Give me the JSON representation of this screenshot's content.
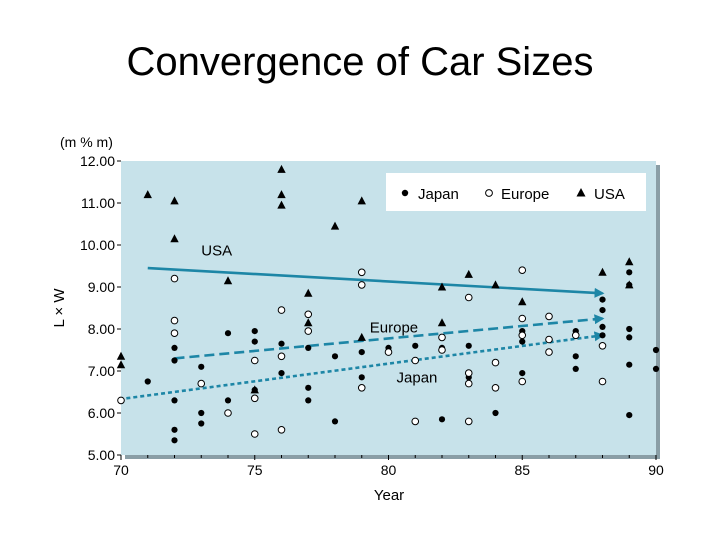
{
  "slide": {
    "title": "Convergence of Car Sizes"
  },
  "chart_data": {
    "type": "scatter",
    "title": "Convergence of Car Sizes",
    "xlabel": "Year",
    "ylabel": "L × W",
    "yunit": "(m % m)",
    "xlim": [
      70,
      90
    ],
    "ylim": [
      5,
      12
    ],
    "xticks": [
      "70",
      "75",
      "80",
      "85",
      "90"
    ],
    "yticks": [
      "5.00",
      "6.00",
      "7.00",
      "8.00",
      "9.00",
      "10.00",
      "11.00",
      "12.00"
    ],
    "legend_position": "top-right",
    "colors": {
      "panel": "#c7e2ea",
      "trend_line": "#1d86a6",
      "marker": "#000000"
    },
    "series": [
      {
        "name": "Japan",
        "marker": "filled-circle",
        "points": [
          [
            71,
            6.75
          ],
          [
            72,
            7.55
          ],
          [
            72,
            7.25
          ],
          [
            72,
            6.3
          ],
          [
            72,
            5.6
          ],
          [
            72,
            5.35
          ],
          [
            73,
            7.1
          ],
          [
            73,
            6.0
          ],
          [
            73,
            5.75
          ],
          [
            74,
            7.9
          ],
          [
            74,
            6.3
          ],
          [
            75,
            7.95
          ],
          [
            75,
            7.7
          ],
          [
            75,
            6.55
          ],
          [
            76,
            7.65
          ],
          [
            76,
            6.95
          ],
          [
            77,
            7.55
          ],
          [
            77,
            6.6
          ],
          [
            77,
            6.3
          ],
          [
            78,
            7.35
          ],
          [
            78,
            5.8
          ],
          [
            79,
            7.45
          ],
          [
            79,
            6.85
          ],
          [
            80,
            7.55
          ],
          [
            81,
            7.6
          ],
          [
            82,
            7.55
          ],
          [
            82,
            5.85
          ],
          [
            83,
            7.6
          ],
          [
            83,
            6.85
          ],
          [
            84,
            6.0
          ],
          [
            85,
            7.95
          ],
          [
            85,
            7.7
          ],
          [
            85,
            6.95
          ],
          [
            87,
            7.95
          ],
          [
            87,
            7.35
          ],
          [
            87,
            7.05
          ],
          [
            88,
            8.7
          ],
          [
            88,
            8.45
          ],
          [
            88,
            8.05
          ],
          [
            88,
            7.85
          ],
          [
            89,
            9.35
          ],
          [
            89,
            9.05
          ],
          [
            89,
            8.0
          ],
          [
            89,
            7.8
          ],
          [
            89,
            7.15
          ],
          [
            89,
            5.95
          ],
          [
            90,
            7.5
          ],
          [
            90,
            7.05
          ]
        ]
      },
      {
        "name": "Europe",
        "marker": "open-circle",
        "points": [
          [
            70,
            6.3
          ],
          [
            72,
            9.2
          ],
          [
            72,
            8.2
          ],
          [
            72,
            7.9
          ],
          [
            73,
            6.7
          ],
          [
            74,
            6.0
          ],
          [
            75,
            7.25
          ],
          [
            75,
            6.35
          ],
          [
            75,
            5.5
          ],
          [
            76,
            8.45
          ],
          [
            76,
            7.35
          ],
          [
            76,
            5.6
          ],
          [
            77,
            8.35
          ],
          [
            77,
            7.95
          ],
          [
            79,
            9.35
          ],
          [
            79,
            9.05
          ],
          [
            79,
            6.6
          ],
          [
            80,
            7.45
          ],
          [
            81,
            7.25
          ],
          [
            81,
            5.8
          ],
          [
            82,
            7.8
          ],
          [
            82,
            7.5
          ],
          [
            83,
            8.75
          ],
          [
            83,
            6.95
          ],
          [
            83,
            6.7
          ],
          [
            83,
            5.8
          ],
          [
            84,
            7.2
          ],
          [
            84,
            6.6
          ],
          [
            85,
            9.4
          ],
          [
            85,
            8.25
          ],
          [
            85,
            7.85
          ],
          [
            85,
            6.75
          ],
          [
            86,
            8.3
          ],
          [
            86,
            7.75
          ],
          [
            86,
            7.45
          ],
          [
            87,
            7.85
          ],
          [
            88,
            7.6
          ],
          [
            88,
            6.75
          ]
        ]
      },
      {
        "name": "USA",
        "marker": "filled-triangle",
        "points": [
          [
            70,
            7.35
          ],
          [
            70,
            7.15
          ],
          [
            71,
            11.2
          ],
          [
            72,
            11.05
          ],
          [
            72,
            10.15
          ],
          [
            74,
            9.15
          ],
          [
            75,
            6.55
          ],
          [
            76,
            11.8
          ],
          [
            76,
            11.2
          ],
          [
            76,
            10.95
          ],
          [
            77,
            8.85
          ],
          [
            77,
            8.15
          ],
          [
            78,
            10.45
          ],
          [
            79,
            11.05
          ],
          [
            79,
            7.8
          ],
          [
            82,
            9.0
          ],
          [
            82,
            8.15
          ],
          [
            83,
            9.3
          ],
          [
            84,
            9.05
          ],
          [
            85,
            8.65
          ],
          [
            88,
            9.35
          ],
          [
            89,
            9.6
          ],
          [
            89,
            9.05
          ]
        ]
      }
    ],
    "trend_lines": [
      {
        "name": "USA",
        "style": "solid",
        "from": [
          71,
          9.45
        ],
        "to": [
          88,
          8.85
        ]
      },
      {
        "name": "Europe",
        "style": "dashed",
        "from": [
          72,
          7.3
        ],
        "to": [
          88,
          8.25
        ]
      },
      {
        "name": "Japan",
        "style": "dotted",
        "from": [
          70.2,
          6.35
        ],
        "to": [
          88,
          7.85
        ]
      }
    ]
  }
}
